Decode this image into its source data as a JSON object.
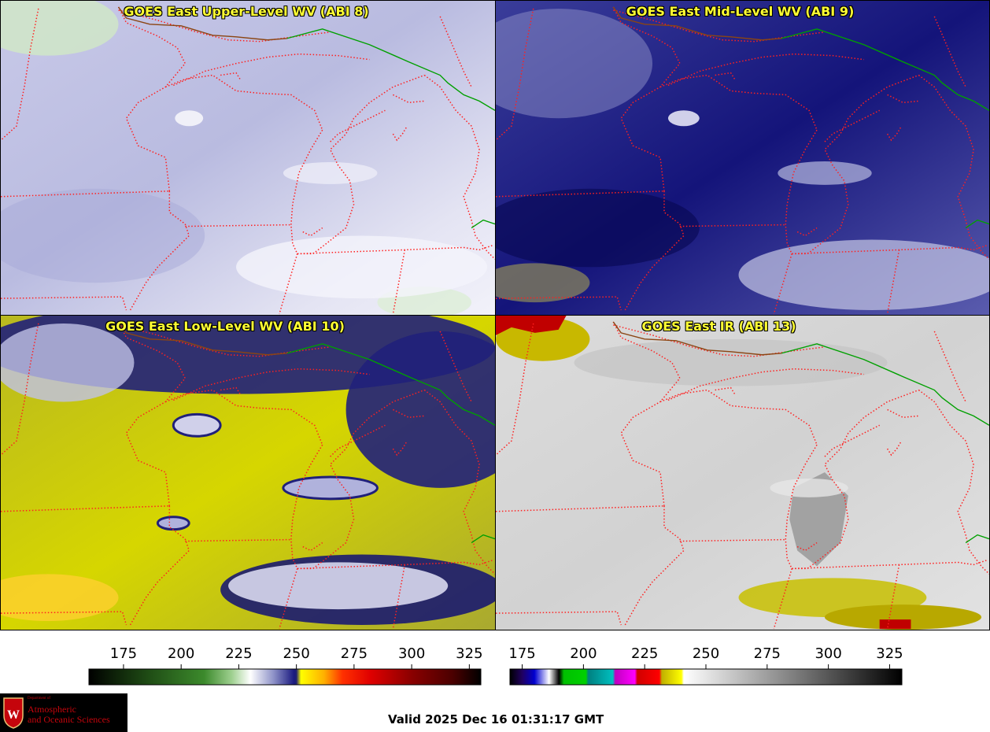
{
  "panels": [
    {
      "title": "GOES East Upper-Level WV (ABI 8)",
      "band": 8
    },
    {
      "title": "GOES East Mid-Level WV (ABI 9)",
      "band": 9
    },
    {
      "title": "GOES East Low-Level WV (ABI 10)",
      "band": 10
    },
    {
      "title": "GOES East IR (ABI 13)",
      "band": 13
    }
  ],
  "colorbars": [
    {
      "name": "water-vapor-colorbar",
      "range": [
        160,
        330
      ],
      "ticks": [
        175,
        200,
        225,
        250,
        275,
        300,
        325
      ],
      "stops": [
        {
          "v": 160,
          "c": "#000000"
        },
        {
          "v": 185,
          "c": "#1e4a14"
        },
        {
          "v": 210,
          "c": "#3c8a2c"
        },
        {
          "v": 222,
          "c": "#9fd090"
        },
        {
          "v": 230,
          "c": "#ffffff"
        },
        {
          "v": 240,
          "c": "#8f93c8"
        },
        {
          "v": 249,
          "c": "#1a1a80"
        },
        {
          "v": 250,
          "c": "#202070"
        },
        {
          "v": 252,
          "c": "#ffff00"
        },
        {
          "v": 262,
          "c": "#ffb000"
        },
        {
          "v": 270,
          "c": "#ff3000"
        },
        {
          "v": 282,
          "c": "#e00000"
        },
        {
          "v": 300,
          "c": "#8a0000"
        },
        {
          "v": 318,
          "c": "#4a0000"
        },
        {
          "v": 330,
          "c": "#000000"
        }
      ]
    },
    {
      "name": "ir-colorbar",
      "range": [
        170,
        330
      ],
      "ticks": [
        175,
        200,
        225,
        250,
        275,
        300,
        325
      ],
      "stops": [
        {
          "v": 170,
          "c": "#000000"
        },
        {
          "v": 175,
          "c": "#200060"
        },
        {
          "v": 180,
          "c": "#0000d0"
        },
        {
          "v": 186,
          "c": "#ffffff"
        },
        {
          "v": 190,
          "c": "#000000"
        },
        {
          "v": 192,
          "c": "#00c000"
        },
        {
          "v": 201,
          "c": "#00d000"
        },
        {
          "v": 202,
          "c": "#008080"
        },
        {
          "v": 212,
          "c": "#00c0c0"
        },
        {
          "v": 213,
          "c": "#c000c0"
        },
        {
          "v": 221,
          "c": "#ff00ff"
        },
        {
          "v": 222,
          "c": "#d00000"
        },
        {
          "v": 231,
          "c": "#ff0000"
        },
        {
          "v": 232,
          "c": "#c0b000"
        },
        {
          "v": 240,
          "c": "#ffff00"
        },
        {
          "v": 241,
          "c": "#ffffff"
        },
        {
          "v": 330,
          "c": "#000000"
        }
      ]
    }
  ],
  "logo": {
    "department": "Department of",
    "line1": "Atmospheric",
    "line2": "and Oceanic Sciences"
  },
  "valid_time": "Valid 2025 Dec 16 01:31:17 GMT"
}
